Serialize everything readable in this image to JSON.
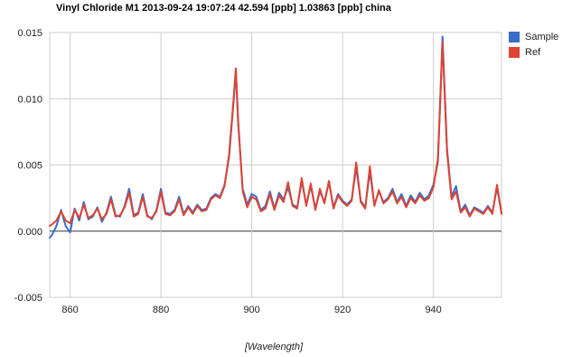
{
  "chart_data": {
    "type": "line",
    "title": "Vinyl Chloride M1 2013-09-24 19:07:24 42.594 [ppb] 1.03863 [ppb] china",
    "xlabel": "[Wavelength]",
    "ylabel": "",
    "xlim": [
      855.5,
      955
    ],
    "ylim": [
      -0.005,
      0.015
    ],
    "x_ticks": [
      860,
      880,
      900,
      920,
      940
    ],
    "y_ticks": [
      "0.015",
      "0.010",
      "0.005",
      "0.000",
      "-0.005"
    ],
    "y_tick_values": [
      0.015,
      0.01,
      0.005,
      0.0,
      -0.005
    ],
    "grid": true,
    "legend_position": "right",
    "series": [
      {
        "name": "Sample",
        "color": "#3b6ccc",
        "x": [
          855.5,
          856,
          857,
          858,
          859,
          860,
          861,
          862,
          863,
          864,
          865,
          866,
          867,
          868,
          869,
          870,
          871,
          872,
          873,
          874,
          875,
          876,
          877,
          878,
          879,
          880,
          881,
          882,
          883,
          884,
          885,
          886,
          887,
          888,
          889,
          890,
          891,
          892,
          893,
          894,
          895,
          896,
          896.5,
          897,
          898,
          899,
          900,
          901,
          902,
          903,
          904,
          905,
          906,
          907,
          908,
          909,
          910,
          911,
          912,
          913,
          914,
          915,
          916,
          917,
          918,
          919,
          920,
          921,
          922,
          923,
          924,
          925,
          926,
          927,
          928,
          929,
          930,
          931,
          932,
          933,
          934,
          935,
          936,
          937,
          938,
          939,
          940,
          941,
          941.5,
          942,
          943,
          944,
          945,
          946,
          947,
          948,
          949,
          950,
          951,
          952,
          953,
          954,
          955
        ],
        "y": [
          -0.0005,
          -0.0003,
          0.0004,
          0.0016,
          0.0004,
          -0.0001,
          0.0017,
          0.0008,
          0.0022,
          0.0009,
          0.0011,
          0.0018,
          0.0007,
          0.0014,
          0.0026,
          0.0012,
          0.0011,
          0.0019,
          0.0032,
          0.0012,
          0.0014,
          0.0028,
          0.0012,
          0.0009,
          0.0016,
          0.0032,
          0.0014,
          0.0013,
          0.0016,
          0.0026,
          0.0013,
          0.0019,
          0.0014,
          0.002,
          0.0016,
          0.0017,
          0.0025,
          0.0028,
          0.0026,
          0.0035,
          0.0056,
          0.0098,
          0.0121,
          0.0082,
          0.0032,
          0.002,
          0.0028,
          0.0026,
          0.0016,
          0.0019,
          0.003,
          0.0017,
          0.0029,
          0.0024,
          0.0033,
          0.002,
          0.0018,
          0.0038,
          0.002,
          0.0034,
          0.0017,
          0.003,
          0.0022,
          0.0037,
          0.0018,
          0.0028,
          0.0023,
          0.002,
          0.0024,
          0.0048,
          0.0023,
          0.0018,
          0.0045,
          0.002,
          0.003,
          0.0022,
          0.0025,
          0.0032,
          0.0022,
          0.0028,
          0.0019,
          0.0027,
          0.0022,
          0.0029,
          0.0024,
          0.0027,
          0.0035,
          0.0052,
          0.0098,
          0.0147,
          0.0062,
          0.0026,
          0.0034,
          0.0015,
          0.002,
          0.0012,
          0.0018,
          0.0016,
          0.0014,
          0.0019,
          0.0014,
          0.0033,
          0.0014
        ]
      },
      {
        "name": "Ref",
        "color": "#dd4433",
        "x": [
          855.5,
          856,
          857,
          858,
          859,
          860,
          861,
          862,
          863,
          864,
          865,
          866,
          867,
          868,
          869,
          870,
          871,
          872,
          873,
          874,
          875,
          876,
          877,
          878,
          879,
          880,
          881,
          882,
          883,
          884,
          885,
          886,
          887,
          888,
          889,
          890,
          891,
          892,
          893,
          894,
          895,
          896,
          896.5,
          897,
          898,
          899,
          900,
          901,
          902,
          903,
          904,
          905,
          906,
          907,
          908,
          909,
          910,
          911,
          912,
          913,
          914,
          915,
          916,
          917,
          918,
          919,
          920,
          921,
          922,
          923,
          924,
          925,
          926,
          927,
          928,
          929,
          930,
          931,
          932,
          933,
          934,
          935,
          936,
          937,
          938,
          939,
          940,
          941,
          941.5,
          942,
          943,
          944,
          945,
          946,
          947,
          948,
          949,
          950,
          951,
          952,
          953,
          954,
          955
        ],
        "y": [
          0.0004,
          0.0005,
          0.0008,
          0.0015,
          0.0008,
          0.0006,
          0.0016,
          0.001,
          0.002,
          0.001,
          0.0012,
          0.0017,
          0.0009,
          0.0013,
          0.0024,
          0.0011,
          0.0012,
          0.0018,
          0.0029,
          0.0011,
          0.0013,
          0.0026,
          0.0011,
          0.001,
          0.0015,
          0.003,
          0.0013,
          0.0012,
          0.0015,
          0.0024,
          0.0012,
          0.0018,
          0.0013,
          0.0019,
          0.0015,
          0.0016,
          0.0024,
          0.0027,
          0.0025,
          0.0034,
          0.0058,
          0.01,
          0.0123,
          0.0084,
          0.003,
          0.0018,
          0.0026,
          0.0024,
          0.0015,
          0.0017,
          0.0028,
          0.0016,
          0.0027,
          0.0022,
          0.0037,
          0.0019,
          0.0017,
          0.004,
          0.0019,
          0.0036,
          0.0016,
          0.0032,
          0.0021,
          0.0038,
          0.0017,
          0.0027,
          0.0022,
          0.0019,
          0.0023,
          0.0052,
          0.0022,
          0.0017,
          0.0049,
          0.0019,
          0.0031,
          0.0021,
          0.0024,
          0.003,
          0.0021,
          0.0026,
          0.0018,
          0.0025,
          0.0021,
          0.0027,
          0.0023,
          0.0025,
          0.0033,
          0.0055,
          0.01,
          0.0143,
          0.006,
          0.0024,
          0.003,
          0.0014,
          0.0018,
          0.0011,
          0.0017,
          0.0015,
          0.0013,
          0.0018,
          0.0013,
          0.0035,
          0.0013
        ]
      }
    ]
  }
}
